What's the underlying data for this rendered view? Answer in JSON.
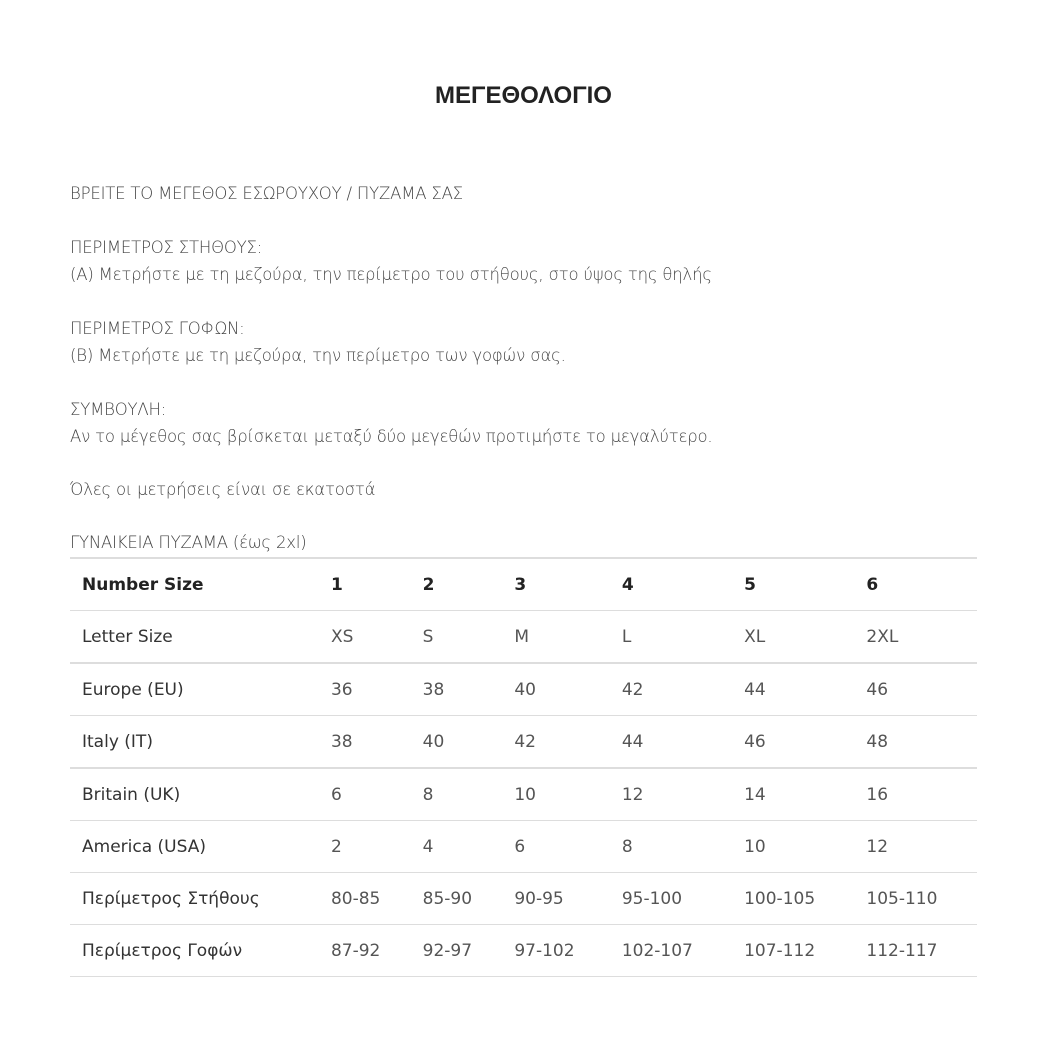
{
  "title": "ΜΕΓΕΘΟΛΟΓΙΟ",
  "intro": "ΒΡΕΙΤΕ ΤΟ ΜΕΓΕΘΟΣ ΕΣΩΡΟΥΧΟΥ / ΠΥΖΑΜΑ ΣΑΣ",
  "chest_heading": "ΠΕΡΙΜΕΤΡΟΣ ΣΤΗΘΟΥΣ:",
  "chest_text": "(Α) Μετρήστε με τη μεζούρα, την περίμετρο του στήθους, στο ύψος της θηλής",
  "hips_heading": "ΠΕΡΙΜΕΤΡΟΣ ΓΟΦΩΝ:",
  "hips_text": "(Β) Μετρήστε με τη μεζούρα, την περίμετρο των γοφών σας.",
  "tip_heading": "ΣΥΜΒΟΥΛΗ:",
  "tip_text": "Αν το μέγεθος σας βρίσκεται μεταξύ δύο μεγεθών προτιμήστε το μεγαλύτερο.",
  "units_note": "Όλες οι μετρήσεις είναι σε εκατοστά",
  "table_caption": "ΓΥΝΑΙΚΕΙΑ ΠΥΖΑΜΑ (έως 2xl)",
  "rows": [
    {
      "label": "Number Size",
      "values": [
        "1",
        "2",
        "3",
        "4",
        "5",
        "6"
      ]
    },
    {
      "label": "Letter Size",
      "values": [
        "XS",
        "S",
        "M",
        "L",
        "XL",
        "2XL"
      ]
    },
    {
      "label": "Europe (EU)",
      "values": [
        "36",
        "38",
        "40",
        "42",
        "44",
        "46"
      ]
    },
    {
      "label": "Italy (IT)",
      "values": [
        "38",
        "40",
        "42",
        "44",
        "46",
        "48"
      ]
    },
    {
      "label": "Britain (UK)",
      "values": [
        "6",
        "8",
        "10",
        "12",
        "14",
        "16"
      ]
    },
    {
      "label": "America (USA)",
      "values": [
        "2",
        "4",
        "6",
        "8",
        "10",
        "12"
      ]
    },
    {
      "label": "Περίμετρος Στήθους",
      "values": [
        "80-85",
        "85-90",
        "90-95",
        "95-100",
        "100-105",
        "105-110"
      ]
    },
    {
      "label": "Περίμετρος Γοφών",
      "values": [
        "87-92",
        "92-97",
        "97-102",
        "102-107",
        "107-112",
        "112-117"
      ]
    }
  ]
}
